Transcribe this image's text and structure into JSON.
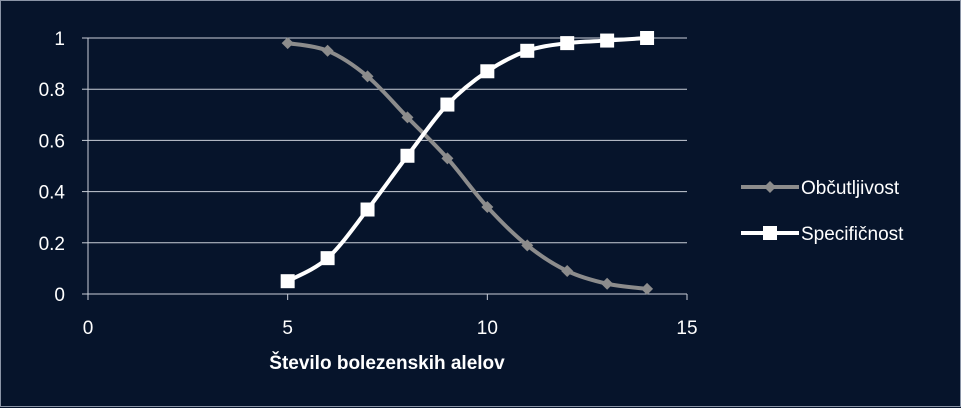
{
  "chart_data": {
    "type": "line",
    "title": "",
    "xlabel": "Število bolezenskih alelov",
    "ylabel": "",
    "xlim": [
      0,
      15
    ],
    "ylim": [
      0,
      1
    ],
    "x_ticks": [
      "0",
      "5",
      "10",
      "15"
    ],
    "y_ticks": [
      "0",
      "0.2",
      "0.4",
      "0.6",
      "0.8",
      "1"
    ],
    "x_tick_values": [
      0,
      5,
      10,
      15
    ],
    "y_tick_values": [
      0,
      0.2,
      0.4,
      0.6,
      0.8,
      1
    ],
    "grid": "horizontal",
    "legend_position": "right",
    "colors": {
      "background": "#06142b",
      "grid": "#c9ced8",
      "text": "#ffffff"
    },
    "series": [
      {
        "name": "Občutljivost",
        "marker": "diamond",
        "color": "#8c8c8c",
        "points": [
          {
            "x": 5,
            "y": 0.98
          },
          {
            "x": 6,
            "y": 0.95
          },
          {
            "x": 7,
            "y": 0.85
          },
          {
            "x": 8,
            "y": 0.69
          },
          {
            "x": 9,
            "y": 0.53
          },
          {
            "x": 10,
            "y": 0.34
          },
          {
            "x": 11,
            "y": 0.19
          },
          {
            "x": 12,
            "y": 0.09
          },
          {
            "x": 13,
            "y": 0.04
          },
          {
            "x": 14,
            "y": 0.02
          }
        ]
      },
      {
        "name": "Specifičnost",
        "marker": "square",
        "color": "#ffffff",
        "points": [
          {
            "x": 5,
            "y": 0.05
          },
          {
            "x": 6,
            "y": 0.14
          },
          {
            "x": 7,
            "y": 0.33
          },
          {
            "x": 8,
            "y": 0.54
          },
          {
            "x": 9,
            "y": 0.74
          },
          {
            "x": 10,
            "y": 0.87
          },
          {
            "x": 11,
            "y": 0.95
          },
          {
            "x": 12,
            "y": 0.98
          },
          {
            "x": 13,
            "y": 0.99
          },
          {
            "x": 14,
            "y": 1.0
          }
        ]
      }
    ]
  }
}
